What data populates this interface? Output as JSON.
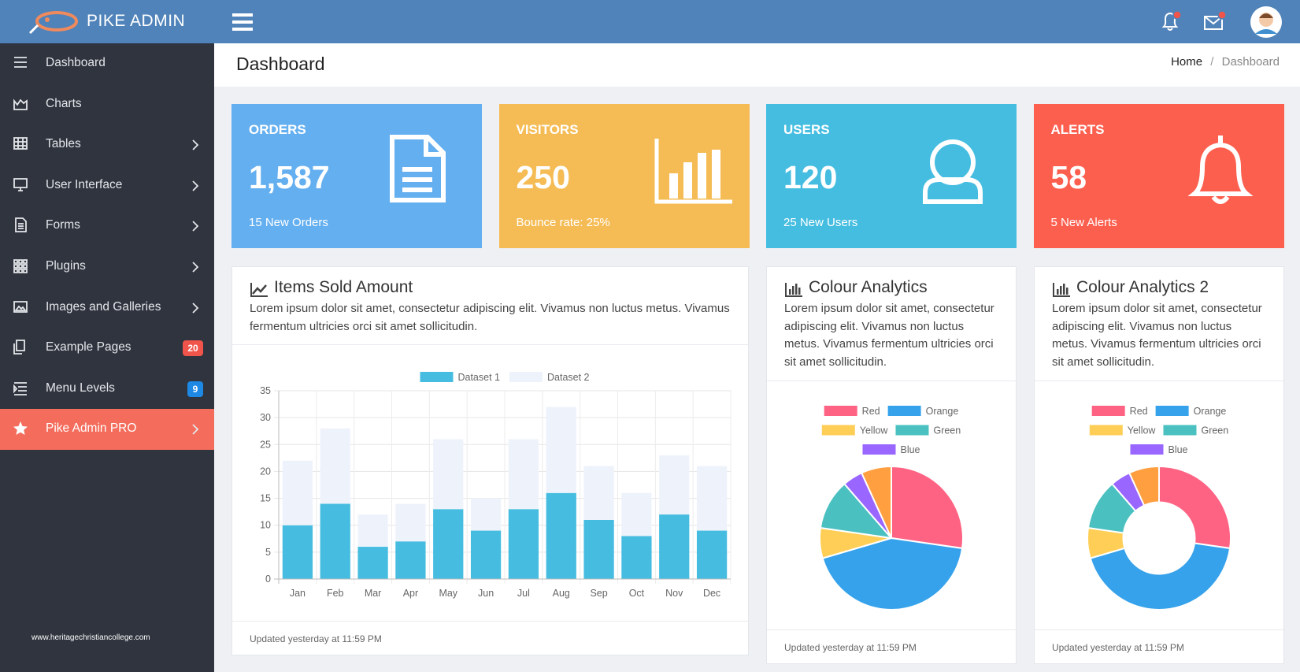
{
  "header": {
    "brand": "PIKE ADMIN"
  },
  "sidebar": {
    "items": [
      {
        "label": "Dashboard"
      },
      {
        "label": "Charts"
      },
      {
        "label": "Tables"
      },
      {
        "label": "User Interface"
      },
      {
        "label": "Forms"
      },
      {
        "label": "Plugins"
      },
      {
        "label": "Images and Galleries"
      },
      {
        "label": "Example Pages",
        "badge": 20
      },
      {
        "label": "Menu Levels",
        "badge": 9
      },
      {
        "label": "Pike Admin PRO",
        "active": true
      }
    ],
    "watermark": "www.heritagechristiancollege.com"
  },
  "page": {
    "title": "Dashboard",
    "breadcrumb": [
      "Home",
      "Dashboard"
    ],
    "separator": "/"
  },
  "cards": [
    {
      "title": "ORDERS",
      "value": "1,587",
      "note": "15 New Orders",
      "color": "#64aff0"
    },
    {
      "title": "VISITORS",
      "value": "250",
      "note": "Bounce rate: 25%",
      "color": "#f5bc55"
    },
    {
      "title": "USERS",
      "value": "120",
      "note": "25 New Users",
      "color": "#45bde0"
    },
    {
      "title": "ALERTS",
      "value": "58",
      "note": "5 New Alerts",
      "color": "#fd5f4f"
    }
  ],
  "chart_data": [
    {
      "type": "bar",
      "title": "Items Sold Amount",
      "description": "Lorem ipsum dolor sit amet, consectetur adipiscing elit. Vivamus non luctus metus. Vivamus fermentum ultricies orci sit amet sollicitudin.",
      "footer": "Updated yesterday at 11:59 PM",
      "stacked": true,
      "categories": [
        "Jan",
        "Feb",
        "Mar",
        "Apr",
        "May",
        "Jun",
        "Jul",
        "Aug",
        "Sep",
        "Oct",
        "Nov",
        "Dec"
      ],
      "series": [
        {
          "name": "Dataset 1",
          "color": "#46bde0",
          "values": [
            10,
            14,
            6,
            7,
            13,
            9,
            13,
            16,
            11,
            8,
            12,
            9
          ]
        },
        {
          "name": "Dataset 2",
          "color": "#eef3fb",
          "values": [
            12,
            14,
            6,
            7,
            13,
            6,
            13,
            16,
            10,
            8,
            11,
            12
          ]
        }
      ],
      "ylim": [
        0,
        35
      ],
      "yticks": [
        0,
        5,
        10,
        15,
        20,
        25,
        30,
        35
      ],
      "grid": true
    },
    {
      "type": "pie",
      "title": "Colour Analytics",
      "description": "Lorem ipsum dolor sit amet, consectetur adipiscing elit. Vivamus non luctus metus. Vivamus fermentum ultricies orci sit amet sollicitudin.",
      "footer": "Updated yesterday at 11:59 PM",
      "categories": [
        "Red",
        "Orange",
        "Yellow",
        "Green",
        "Blue",
        null
      ],
      "values": [
        12,
        19,
        3,
        5,
        2,
        3
      ],
      "colors": [
        "#ff6384",
        "#36a2eb",
        "#ffce56",
        "#4bc0c0",
        "#9966ff",
        "#ff9f40"
      ]
    },
    {
      "type": "doughnut",
      "title": "Colour Analytics 2",
      "description": "Lorem ipsum dolor sit amet, consectetur adipiscing elit. Vivamus non luctus metus. Vivamus fermentum ultricies orci sit amet sollicitudin.",
      "footer": "Updated yesterday at 11:59 PM",
      "categories": [
        "Red",
        "Orange",
        "Yellow",
        "Green",
        "Blue",
        null
      ],
      "values": [
        12,
        19,
        3,
        5,
        2,
        3
      ],
      "colors": [
        "#ff6384",
        "#36a2eb",
        "#ffce56",
        "#4bc0c0",
        "#9966ff",
        "#ff9f40"
      ]
    }
  ]
}
